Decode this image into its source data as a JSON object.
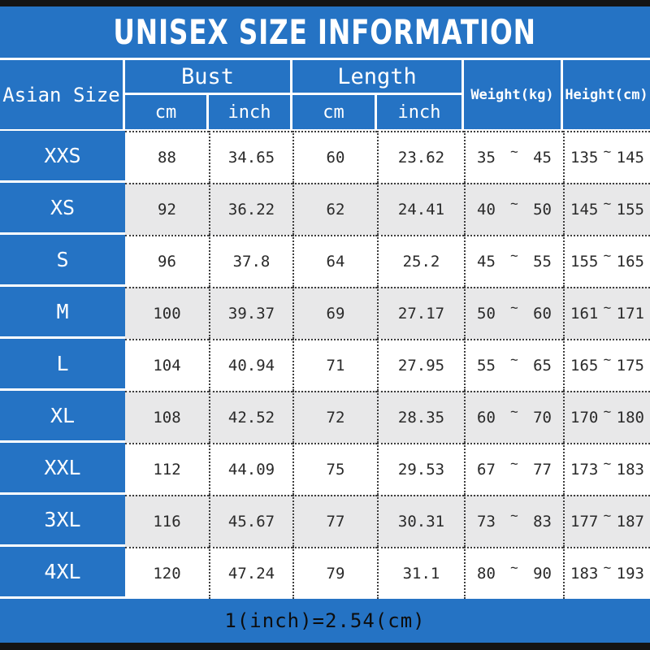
{
  "range_separator": "~",
  "colors": {
    "accent_blue": "#2573c4",
    "alt_row_gray": "#e8e8e9",
    "frame_black": "#141414",
    "title_text": "#ffffff",
    "data_text": "#2a2a2a"
  },
  "chart_data": {
    "type": "table",
    "title": "UNISEX SIZE INFORMATION",
    "note": "1(inch)=2.54(cm)",
    "column_groups": [
      {
        "label": "Asian Size"
      },
      {
        "label": "Bust",
        "sub": [
          "cm",
          "inch"
        ]
      },
      {
        "label": "Length",
        "sub": [
          "cm",
          "inch"
        ]
      },
      {
        "label": "Weight(kg)"
      },
      {
        "label": "Height(cm)"
      }
    ],
    "rows": [
      {
        "size": "XXS",
        "bust_cm": 88,
        "bust_inch": 34.65,
        "length_cm": 60,
        "length_inch": 23.62,
        "weight_kg": [
          35,
          45
        ],
        "height_cm": [
          135,
          145
        ]
      },
      {
        "size": "XS",
        "bust_cm": 92,
        "bust_inch": 36.22,
        "length_cm": 62,
        "length_inch": 24.41,
        "weight_kg": [
          40,
          50
        ],
        "height_cm": [
          145,
          155
        ]
      },
      {
        "size": "S",
        "bust_cm": 96,
        "bust_inch": 37.8,
        "length_cm": 64,
        "length_inch": 25.2,
        "weight_kg": [
          45,
          55
        ],
        "height_cm": [
          155,
          165
        ]
      },
      {
        "size": "M",
        "bust_cm": 100,
        "bust_inch": 39.37,
        "length_cm": 69,
        "length_inch": 27.17,
        "weight_kg": [
          50,
          60
        ],
        "height_cm": [
          161,
          171
        ]
      },
      {
        "size": "L",
        "bust_cm": 104,
        "bust_inch": 40.94,
        "length_cm": 71,
        "length_inch": 27.95,
        "weight_kg": [
          55,
          65
        ],
        "height_cm": [
          165,
          175
        ]
      },
      {
        "size": "XL",
        "bust_cm": 108,
        "bust_inch": 42.52,
        "length_cm": 72,
        "length_inch": 28.35,
        "weight_kg": [
          60,
          70
        ],
        "height_cm": [
          170,
          180
        ]
      },
      {
        "size": "XXL",
        "bust_cm": 112,
        "bust_inch": 44.09,
        "length_cm": 75,
        "length_inch": 29.53,
        "weight_kg": [
          67,
          77
        ],
        "height_cm": [
          173,
          183
        ]
      },
      {
        "size": "3XL",
        "bust_cm": 116,
        "bust_inch": 45.67,
        "length_cm": 77,
        "length_inch": 30.31,
        "weight_kg": [
          73,
          83
        ],
        "height_cm": [
          177,
          187
        ]
      },
      {
        "size": "4XL",
        "bust_cm": 120,
        "bust_inch": 47.24,
        "length_cm": 79,
        "length_inch": 31.1,
        "weight_kg": [
          80,
          90
        ],
        "height_cm": [
          183,
          193
        ]
      }
    ]
  }
}
